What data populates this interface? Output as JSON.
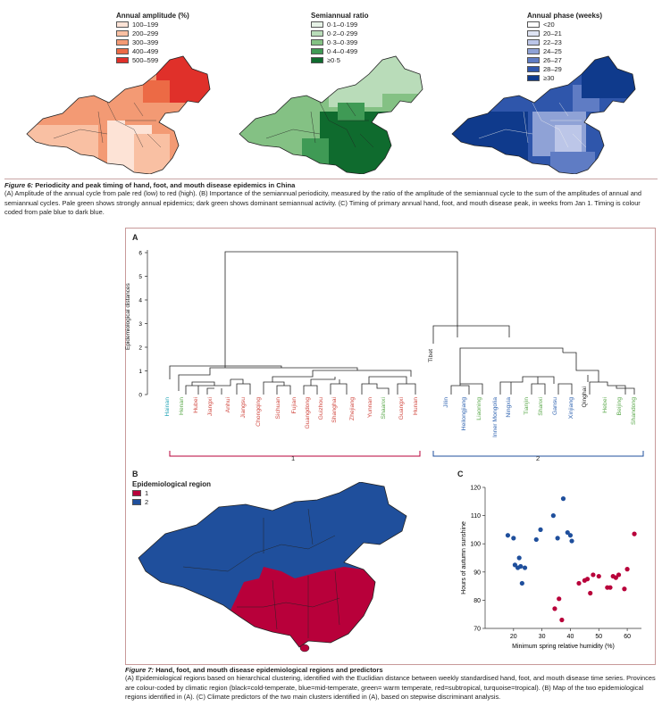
{
  "figure6": {
    "legends": [
      {
        "title": "Annual amplitude (%)",
        "items": [
          {
            "label": "100–199",
            "color": "#fde3d6"
          },
          {
            "label": "200–299",
            "color": "#f9c0a3"
          },
          {
            "label": "300–399",
            "color": "#f39a74"
          },
          {
            "label": "400–499",
            "color": "#ec6a45"
          },
          {
            "label": "500–599",
            "color": "#e0302a"
          }
        ]
      },
      {
        "title": "Semiannual ratio",
        "items": [
          {
            "label": "0·1–0·199",
            "color": "#e6f2e6"
          },
          {
            "label": "0·2–0·299",
            "color": "#b9dcb9"
          },
          {
            "label": "0·3–0·399",
            "color": "#84c184"
          },
          {
            "label": "0·4–0·499",
            "color": "#3f9a55"
          },
          {
            "label": "≥0·5",
            "color": "#0f6b2e"
          }
        ]
      },
      {
        "title": "Annual phase (weeks)",
        "items": [
          {
            "label": "<20",
            "color": "#ffffff"
          },
          {
            "label": "20–21",
            "color": "#dfe4f3"
          },
          {
            "label": "22–23",
            "color": "#bcc6e8"
          },
          {
            "label": "24–25",
            "color": "#8fa2d6"
          },
          {
            "label": "26–27",
            "color": "#5f7cc4"
          },
          {
            "label": "28–29",
            "color": "#2f56ab"
          },
          {
            "label": "≥30",
            "color": "#0f3a8c"
          }
        ]
      }
    ],
    "caption_label": "Figure 6:",
    "caption_title": " Periodicity and peak timing of hand, foot, and mouth disease epidemics in China",
    "caption_text": "(A) Amplitude of the annual cycle from pale red (low) to red (high). (B) Importance of the semiannual periodicity, measured by the ratio of the amplitude of the semiannual cycle to the sum of the amplitudes of annual and semiannual cycles. Pale green shows strongly annual epidemics; dark green shows dominant semiannual activity. (C) Timing of primary annual hand, foot, and mouth disease peak, in weeks from Jan 1. Timing is colour coded from pale blue to dark blue."
  },
  "figure7": {
    "panelA": {
      "letter": "A",
      "ylabel": "Epidemiological distances",
      "yticks": [
        "0",
        "1",
        "2",
        "3",
        "4",
        "5",
        "6"
      ],
      "cluster1_label": "1",
      "cluster2_label": "2",
      "leaves": [
        {
          "name": "Hainan",
          "color": "#2aa7b8"
        },
        {
          "name": "Henan",
          "color": "#5aa84a"
        },
        {
          "name": "Hubei",
          "color": "#d0473f"
        },
        {
          "name": "Jiangxi",
          "color": "#d0473f"
        },
        {
          "name": "Anhui",
          "color": "#d0473f"
        },
        {
          "name": "Jiangsu",
          "color": "#d0473f"
        },
        {
          "name": "Chongqing",
          "color": "#d0473f"
        },
        {
          "name": "Sichuan",
          "color": "#d0473f"
        },
        {
          "name": "Fujian",
          "color": "#d0473f"
        },
        {
          "name": "Guangdong",
          "color": "#d0473f"
        },
        {
          "name": "Guizhou",
          "color": "#d0473f"
        },
        {
          "name": "Shanghai",
          "color": "#d0473f"
        },
        {
          "name": "Zhejiang",
          "color": "#d0473f"
        },
        {
          "name": "Yunnan",
          "color": "#d0473f"
        },
        {
          "name": "Shaanxi",
          "color": "#5aa84a"
        },
        {
          "name": "Guangxi",
          "color": "#d0473f"
        },
        {
          "name": "Hunan",
          "color": "#d0473f"
        },
        {
          "name": "Tibet",
          "color": "#222222"
        },
        {
          "name": "Jilin",
          "color": "#2f63b0"
        },
        {
          "name": "Heilongjiang",
          "color": "#2f63b0"
        },
        {
          "name": "Liaoning",
          "color": "#5aa84a"
        },
        {
          "name": "Inner Mongolia",
          "color": "#2f63b0"
        },
        {
          "name": "Ningxia",
          "color": "#2f63b0"
        },
        {
          "name": "Tianjin",
          "color": "#5aa84a"
        },
        {
          "name": "Shanxi",
          "color": "#5aa84a"
        },
        {
          "name": "Gansu",
          "color": "#2f63b0"
        },
        {
          "name": "Xinjiang",
          "color": "#2f63b0"
        },
        {
          "name": "Qinghai",
          "color": "#222222"
        },
        {
          "name": "Hebei",
          "color": "#5aa84a"
        },
        {
          "name": "Beijing",
          "color": "#5aa84a"
        },
        {
          "name": "Shandong",
          "color": "#5aa84a"
        }
      ]
    },
    "panelB": {
      "letter": "B",
      "legend_title": "Epidemiological region",
      "items": [
        {
          "label": "1",
          "color": "#b8003a"
        },
        {
          "label": "2",
          "color": "#1f4f9c"
        }
      ]
    },
    "panelC": {
      "letter": "C"
    },
    "caption_label": "Figure 7:",
    "caption_title": " Hand, foot, and mouth disease epidemiological regions and predictors",
    "caption_text": "(A) Epidemiological regions based on hierarchical clustering, identified with the Euclidian distance between weekly standardised hand, foot, and mouth disease time series. Provinces are colour-coded by climatic region (black=cold-temperate, blue=mid-temperate, green= warm temperate, red=subtropical, turquoise=tropical). (B) Map of the two epidemiological regions identified in (A). (C) Climate predictors of the two main clusters identified in (A), based on stepwise discriminant analysis."
  },
  "chart_data": {
    "type": "scatter",
    "xlabel": "Minimum spring relative humidity (%)",
    "ylabel": "Hours of autumn sunshine",
    "xlim": [
      10,
      65
    ],
    "ylim": [
      70,
      120
    ],
    "xticks": [
      20,
      30,
      40,
      50,
      60
    ],
    "yticks": [
      70,
      80,
      90,
      100,
      110,
      120
    ],
    "series": [
      {
        "color": "#1f4f9c",
        "points": [
          [
            18,
            103
          ],
          [
            20,
            102
          ],
          [
            20.5,
            92.5
          ],
          [
            21.5,
            91.5
          ],
          [
            22,
            95
          ],
          [
            22.5,
            92
          ],
          [
            23,
            86
          ],
          [
            24,
            91.5
          ],
          [
            28,
            101.5
          ],
          [
            29.5,
            105
          ],
          [
            34,
            110
          ],
          [
            35.5,
            102
          ],
          [
            37.5,
            116
          ],
          [
            39,
            104
          ],
          [
            40,
            103
          ],
          [
            40.5,
            101
          ]
        ]
      },
      {
        "color": "#b8003a",
        "points": [
          [
            34.5,
            77
          ],
          [
            36,
            80.5
          ],
          [
            37,
            73
          ],
          [
            43,
            86
          ],
          [
            45,
            87
          ],
          [
            46,
            87.5
          ],
          [
            47,
            82.5
          ],
          [
            48,
            89
          ],
          [
            50,
            88.5
          ],
          [
            53,
            84.5
          ],
          [
            54,
            84.5
          ],
          [
            55,
            88.5
          ],
          [
            56,
            88
          ],
          [
            57,
            89
          ],
          [
            59,
            84
          ],
          [
            60,
            91
          ],
          [
            62.5,
            103.5
          ]
        ]
      }
    ]
  }
}
